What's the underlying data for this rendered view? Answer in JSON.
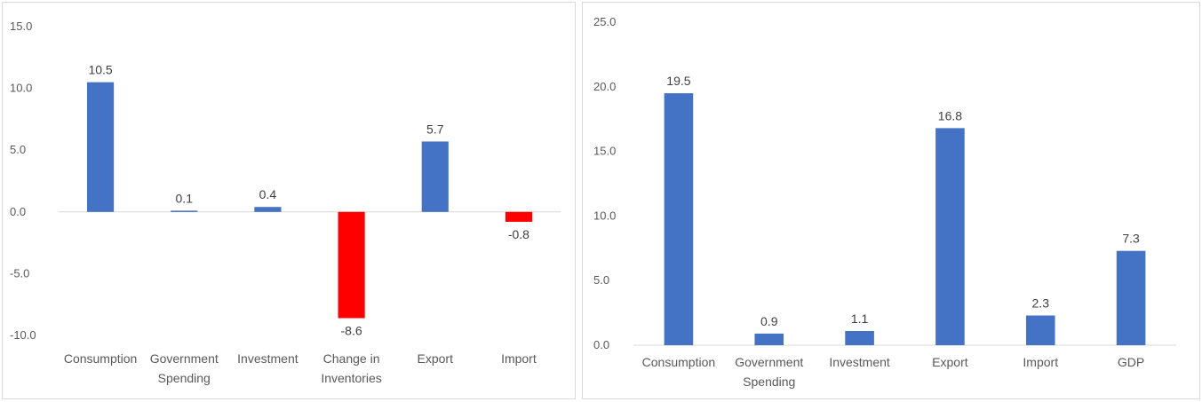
{
  "chart_data": [
    {
      "type": "bar",
      "title": "",
      "xlabel": "",
      "ylabel": "",
      "categories": [
        [
          "Consumption"
        ],
        [
          "Government",
          "Spending"
        ],
        [
          "Investment"
        ],
        [
          "Change in",
          "Inventories"
        ],
        [
          "Export"
        ],
        [
          "Import"
        ]
      ],
      "values": [
        10.5,
        0.1,
        0.4,
        -8.6,
        5.7,
        -0.8
      ],
      "ylim": [
        -10,
        15
      ],
      "yticks": [
        "15.0",
        "10.0",
        "5.0",
        "0.0",
        "-5.0",
        "-10.0"
      ],
      "data_labels": [
        "10.5",
        "0.1",
        "0.4",
        "-8.6",
        "5.7",
        "-0.8"
      ],
      "grid": false,
      "legend": "none",
      "colors": {
        "positive": "#4472C4",
        "negative": "#FF0000"
      }
    },
    {
      "type": "bar",
      "title": "",
      "xlabel": "",
      "ylabel": "",
      "categories": [
        [
          "Consumption"
        ],
        [
          "Government",
          "Spending"
        ],
        [
          "Investment"
        ],
        [
          "Export"
        ],
        [
          "Import"
        ],
        [
          "GDP"
        ]
      ],
      "values": [
        19.5,
        0.9,
        1.1,
        16.8,
        2.3,
        7.3
      ],
      "ylim": [
        0,
        25
      ],
      "yticks": [
        "25.0",
        "20.0",
        "15.0",
        "10.0",
        "5.0",
        "0.0"
      ],
      "data_labels": [
        "19.5",
        "0.9",
        "1.1",
        "16.8",
        "2.3",
        "7.3"
      ],
      "grid": false,
      "legend": "none",
      "colors": {
        "positive": "#4472C4",
        "negative": "#FF0000"
      }
    }
  ]
}
